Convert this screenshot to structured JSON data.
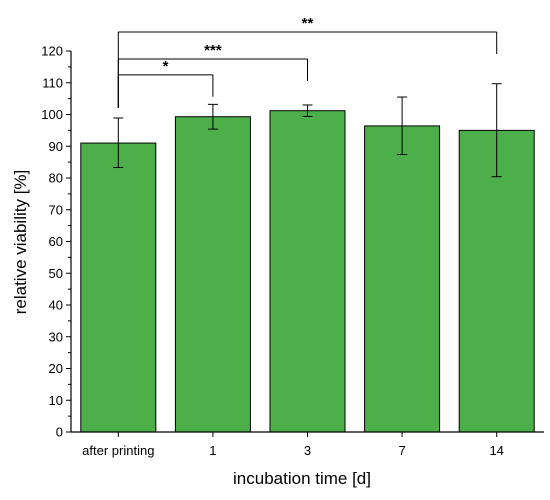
{
  "chart_data": {
    "type": "bar",
    "categories": [
      "after printing",
      "1",
      "3",
      "7",
      "14"
    ],
    "values": [
      91,
      99.3,
      101.2,
      96.4,
      95
    ],
    "error_bars": [
      {
        "low": 83.3,
        "high": 98.9
      },
      {
        "low": 95.4,
        "high": 103.2
      },
      {
        "low": 99.4,
        "high": 103
      },
      {
        "low": 87.4,
        "high": 105.5
      },
      {
        "low": 80.4,
        "high": 109.7
      }
    ],
    "xlabel": "incubation time [d]",
    "ylabel": "relative viability [%]",
    "ylim": [
      0,
      120
    ],
    "yticks": [
      0,
      10,
      20,
      30,
      40,
      50,
      60,
      70,
      80,
      90,
      100,
      110,
      120
    ],
    "bar_color": "#4daf4a",
    "significance": [
      {
        "from": 0,
        "to": 1,
        "label": "*",
        "level": 112.5
      },
      {
        "from": 0,
        "to": 2,
        "label": "***",
        "level": 117.5
      },
      {
        "from": 0,
        "to": 4,
        "label": "**",
        "level": 126
      }
    ],
    "grid": false,
    "legend": "none"
  }
}
